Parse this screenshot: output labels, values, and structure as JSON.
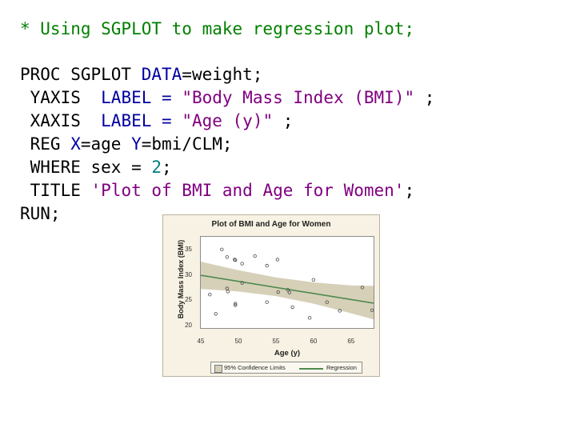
{
  "code": {
    "comment": "* Using SGPLOT to make regression plot;",
    "proc_kw": "PROC SGPLOT ",
    "data_kw": "DATA",
    "data_rest": "=weight;",
    "yaxis_kw": " YAXIS  ",
    "yaxis_label_kw": "LABEL = ",
    "yaxis_str": "\"Body Mass Index (BMI)\"",
    "yaxis_end": " ;",
    "xaxis_kw": " XAXIS  ",
    "xaxis_label_kw": "LABEL = ",
    "xaxis_str": "\"Age (y)\"",
    "xaxis_end": " ;",
    "reg_kw": " REG ",
    "reg_x_kw": "X",
    "reg_mid": "=age ",
    "reg_y_kw": "Y",
    "reg_end": "=bmi/CLM;",
    "where_kw": " WHERE ",
    "where_mid": "sex = ",
    "where_num": "2",
    "where_end": ";",
    "title_kw": " TITLE ",
    "title_str": "'Plot of BMI and Age for Women'",
    "title_end": ";",
    "run": "RUN;"
  },
  "chart_data": {
    "type": "scatter",
    "title": "Plot of BMI and Age for Women",
    "xlabel": "Age (y)",
    "ylabel": "Body Mass Index (BMI)",
    "xlim": [
      45,
      68
    ],
    "ylim": [
      19.5,
      37.5
    ],
    "x_ticks": [
      "45",
      "50",
      "55",
      "60",
      "65"
    ],
    "y_ticks": [
      "20",
      "25",
      "30",
      "35"
    ],
    "points": [
      {
        "x": 46.2,
        "y": 26.1
      },
      {
        "x": 47.0,
        "y": 22.3
      },
      {
        "x": 47.8,
        "y": 35.0
      },
      {
        "x": 48.5,
        "y": 33.5
      },
      {
        "x": 48.5,
        "y": 27.3
      },
      {
        "x": 48.6,
        "y": 26.7
      },
      {
        "x": 49.5,
        "y": 33.0
      },
      {
        "x": 49.6,
        "y": 32.9
      },
      {
        "x": 49.6,
        "y": 24.3
      },
      {
        "x": 49.6,
        "y": 24.0
      },
      {
        "x": 50.5,
        "y": 32.2
      },
      {
        "x": 50.5,
        "y": 28.4
      },
      {
        "x": 52.2,
        "y": 33.7
      },
      {
        "x": 53.8,
        "y": 31.8
      },
      {
        "x": 53.8,
        "y": 24.6
      },
      {
        "x": 55.2,
        "y": 33.0
      },
      {
        "x": 55.3,
        "y": 26.6
      },
      {
        "x": 56.6,
        "y": 27.0
      },
      {
        "x": 56.8,
        "y": 26.5
      },
      {
        "x": 57.2,
        "y": 23.6
      },
      {
        "x": 59.5,
        "y": 21.5
      },
      {
        "x": 60.0,
        "y": 29.0
      },
      {
        "x": 61.8,
        "y": 24.6
      },
      {
        "x": 63.5,
        "y": 22.9
      },
      {
        "x": 66.5,
        "y": 27.5
      },
      {
        "x": 67.8,
        "y": 23.0
      }
    ],
    "regression": {
      "x": [
        45,
        68
      ],
      "y": [
        29.9,
        24.4
      ],
      "color": "#4e8a4e"
    },
    "clm": {
      "upper": [
        [
          45,
          32.6
        ],
        [
          50,
          30.9
        ],
        [
          55,
          29.5
        ],
        [
          60,
          28.5
        ],
        [
          65,
          27.9
        ],
        [
          68,
          27.8
        ]
      ],
      "lower": [
        [
          45,
          27.2
        ],
        [
          50,
          26.7
        ],
        [
          55,
          25.8
        ],
        [
          60,
          24.3
        ],
        [
          65,
          22.4
        ],
        [
          68,
          21.2
        ]
      ],
      "color": "#d6d0b8"
    },
    "legend": {
      "band_label": "95% Confidence Limits",
      "line_label": "Regression",
      "position": "bottom"
    }
  }
}
